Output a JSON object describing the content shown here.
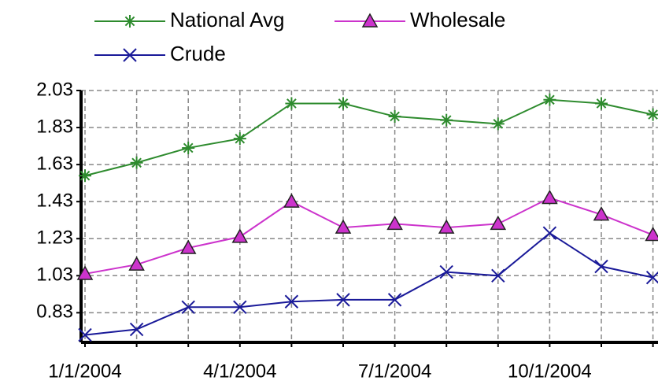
{
  "chart_data": {
    "type": "line",
    "categories": [
      "1/1/2004",
      null,
      null,
      "4/1/2004",
      null,
      null,
      "7/1/2004",
      null,
      null,
      "10/1/2004",
      null,
      null
    ],
    "series": [
      {
        "name": "National Avg",
        "color": "#2e8b2e",
        "marker": "asterisk",
        "values": [
          1.57,
          1.64,
          1.72,
          1.77,
          1.96,
          1.96,
          1.89,
          1.87,
          1.85,
          1.98,
          1.96,
          1.9
        ]
      },
      {
        "name": "Wholesale",
        "color": "#cc33cc",
        "marker": "triangle",
        "values": [
          1.04,
          1.09,
          1.18,
          1.24,
          1.43,
          1.29,
          1.31,
          1.29,
          1.31,
          1.45,
          1.36,
          1.25
        ]
      },
      {
        "name": "Crude",
        "color": "#1a1a99",
        "marker": "x",
        "values": [
          0.71,
          0.74,
          0.86,
          0.86,
          0.89,
          0.9,
          0.9,
          1.05,
          1.03,
          1.26,
          1.08,
          1.02
        ]
      }
    ],
    "ylim": [
      0.67,
      2.03
    ],
    "yticks": [
      0.83,
      1.03,
      1.23,
      1.43,
      1.63,
      1.83,
      2.03
    ],
    "grid": true
  }
}
